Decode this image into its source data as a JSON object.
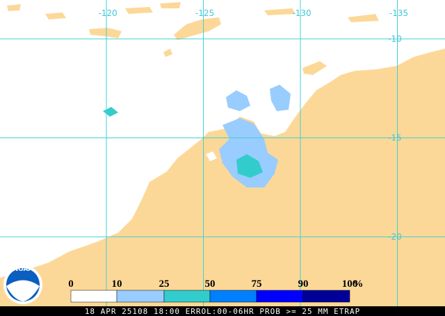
{
  "map": {
    "lon_labels": [
      -120,
      -125,
      -130,
      -135
    ],
    "lat_labels": [
      -10,
      -15,
      -20
    ],
    "grid_color": "#40d0d0",
    "land_color": "#fcd898",
    "sea_color": "#ffffff"
  },
  "legend": {
    "breaks": [
      0,
      10,
      25,
      50,
      75,
      90,
      100
    ],
    "unit": "%",
    "colors": [
      "#ffffff",
      "#99ccff",
      "#33cccc",
      "#0080ff",
      "#0000ff",
      "#000099"
    ]
  },
  "logo": "NOAA",
  "footer": "18 APR 25108 18:00 ERROL:00-06HR PROB >= 25 MM ETRAP"
}
